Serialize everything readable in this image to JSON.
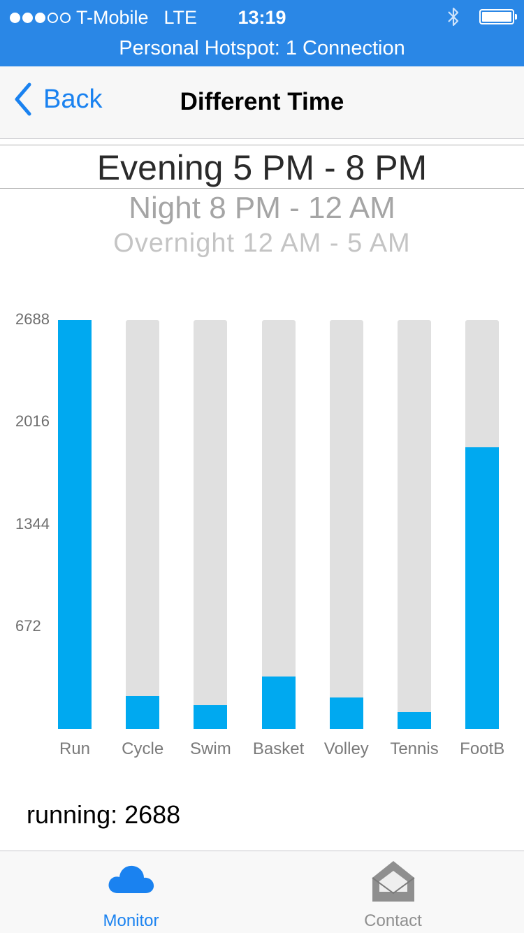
{
  "status_bar": {
    "carrier": "T-Mobile",
    "network": "LTE",
    "time": "13:19",
    "signal_bars": 3,
    "signal_max": 5,
    "battery_level": 1.0,
    "icons": [
      "bluetooth-icon",
      "battery-icon"
    ]
  },
  "hotspot_banner": "Personal Hotspot: 1 Connection",
  "nav": {
    "back_label": "Back",
    "title": "Different Time"
  },
  "picker": {
    "selected": "Evening 5 PM - 8 PM",
    "options_below": [
      "Night 8 PM - 12 AM",
      "Overnight 12 AM - 5 AM"
    ]
  },
  "chart_data": {
    "type": "bar",
    "categories": [
      "Run",
      "Cycle",
      "Swim",
      "Basket",
      "Volley",
      "Tennis",
      "FootB"
    ],
    "values": [
      2688,
      215,
      155,
      345,
      205,
      110,
      1850
    ],
    "ylim": [
      0,
      2688
    ],
    "yticks": [
      "672",
      "1344",
      "2016",
      "2688"
    ],
    "colors": {
      "bar": "#00a9f0",
      "track": "#e0e0e0"
    }
  },
  "readout": "running: 2688",
  "tabs": [
    {
      "label": "Monitor",
      "icon": "cloud-icon",
      "active": true
    },
    {
      "label": "Contact",
      "icon": "envelope-icon",
      "active": false
    }
  ],
  "colors": {
    "status_bar": "#2a87e6",
    "accent": "#1a82f0"
  }
}
